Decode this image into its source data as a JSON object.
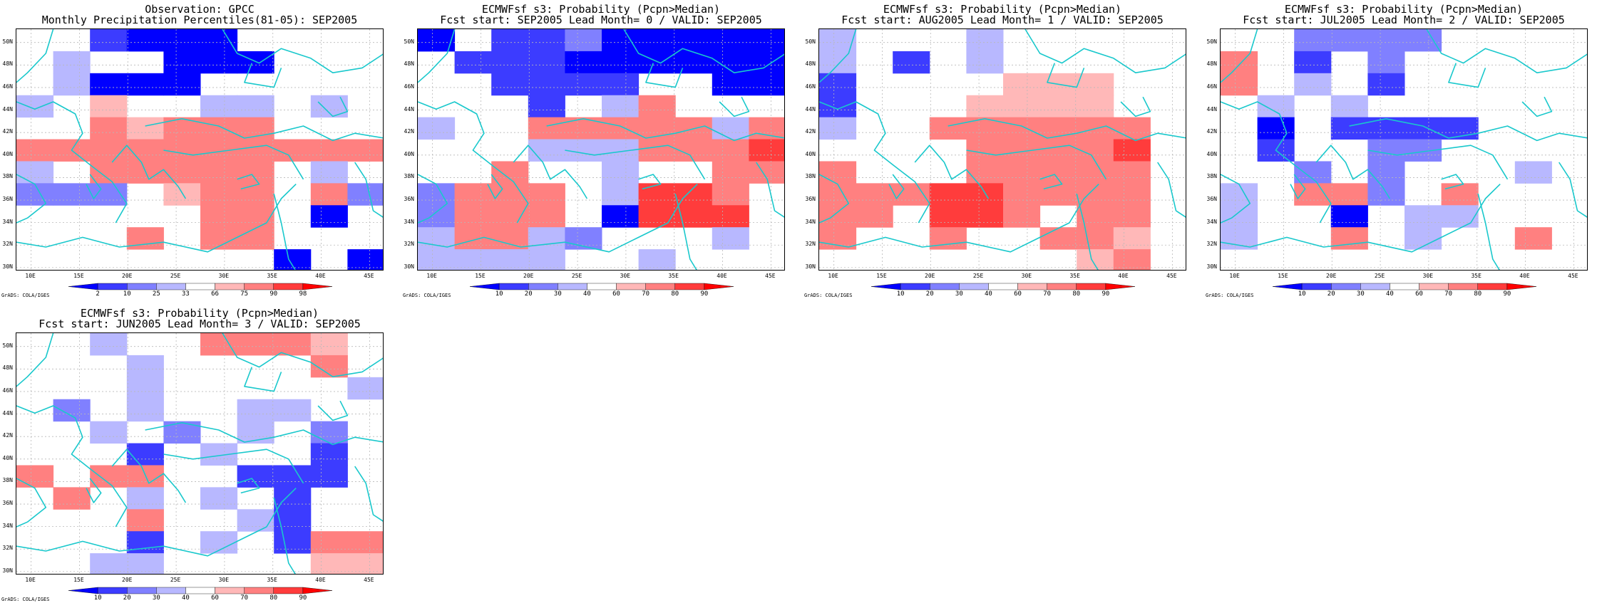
{
  "credit": "GrADS: COLA/IGES",
  "lat_labels": [
    "50N",
    "48N",
    "46N",
    "44N",
    "42N",
    "40N",
    "38N",
    "36N",
    "34N",
    "32N",
    "30N"
  ],
  "lon_labels": [
    "10E",
    "15E",
    "20E",
    "25E",
    "30E",
    "35E",
    "40E",
    "45E"
  ],
  "colors": {
    "coast": "#19c8cc",
    "grid": "#b8b8b8",
    "frame": "#000000"
  },
  "panels": [
    {
      "title1": "Observation: GPCC",
      "title2": "Monthly Precipitation Percentiles(81-05): SEP2005",
      "colorbar": {
        "labels": [
          "2",
          "10",
          "25",
          "33",
          "66",
          "75",
          "90",
          "98"
        ],
        "colors": [
          "#0000ff",
          "#3c3cff",
          "#8080ff",
          "#b8b8ff",
          "#ffffff",
          "#ffb8b8",
          "#ff8080",
          "#ff3c3c",
          "#ff0000"
        ]
      },
      "grid": [
        "..1000....",
        ".3..000...",
        ".3000.....",
        "3.B..33.3.",
        "..EBEEE...",
        "EEEEEEEEEE",
        "3.EEEEE.3.",
        "222.BEE.E2",
        ".....EE.0.",
        "...E.EE...",
        ".......0.0"
      ]
    },
    {
      "title1": "ECMWFsf s3: Probability (Pcpn>Median)",
      "title2": "Fcst start: SEP2005  Lead Month= 0 / VALID: SEP2005",
      "colorbar": {
        "labels": [
          "10",
          "20",
          "30",
          "40",
          "60",
          "70",
          "80",
          "90"
        ],
        "colors": [
          "#0000ff",
          "#3c3cff",
          "#8080ff",
          "#b8b8ff",
          "#ffffff",
          "#ffb8b8",
          "#ff8080",
          "#ff3c3c",
          "#ff0000"
        ]
      },
      "grid": [
        "0.11200000",
        ".111000000",
        "..1111..00",
        "...1.3E...",
        "3..EEEEE3E",
        "...333EEEF",
        "..E..3..EE",
        "2EEE.3FFE.",
        "2EEE.0FFF.",
        "3EE32...3.",
        "3333..3..."
      ]
    },
    {
      "title1": "ECMWFsf s3: Probability (Pcpn>Median)",
      "title2": "Fcst start: AUG2005  Lead Month= 1 / VALID: SEP2005",
      "colorbar": {
        "labels": [
          "10",
          "20",
          "30",
          "40",
          "60",
          "70",
          "80",
          "90"
        ],
        "colors": [
          "#0000ff",
          "#3c3cff",
          "#8080ff",
          "#b8b8ff",
          "#ffffff",
          "#ffb8b8",
          "#ff8080",
          "#ff3c3c",
          "#ff0000"
        ]
      },
      "grid": [
        "3...3.....",
        "3.1.3.....",
        "1....BBB..",
        "1...BBBB..",
        "3..EEEEEE.",
        "....EEEEF.",
        "E...EEEEE.",
        "EEEFFEEEE.",
        "EE.FFE.EE.",
        "E..E..EEB.",
        ".......BE."
      ]
    },
    {
      "title1": "ECMWFsf s3: Probability (Pcpn>Median)",
      "title2": "Fcst start: JUL2005  Lead Month= 2 / VALID: SEP2005",
      "colorbar": {
        "labels": [
          "10",
          "20",
          "30",
          "40",
          "60",
          "70",
          "80",
          "90"
        ],
        "colors": [
          "#0000ff",
          "#3c3cff",
          "#8080ff",
          "#b8b8ff",
          "#ffffff",
          "#ffb8b8",
          "#ff8080",
          "#ff3c3c",
          "#ff0000"
        ]
      },
      "grid": [
        "..2222....",
        "E.1.2.....",
        "E.3.1.....",
        ".3.3......",
        ".0.1111...",
        ".1..22....",
        "..2.2...3.",
        "3.EE2.E...",
        "3..0.33...",
        "3..E.3..E.",
        ".........."
      ]
    },
    {
      "title1": "ECMWFsf s3: Probability (Pcpn>Median)",
      "title2": "Fcst start: JUN2005  Lead Month= 3 / VALID: SEP2005",
      "colorbar": {
        "labels": [
          "10",
          "20",
          "30",
          "40",
          "60",
          "70",
          "80",
          "90"
        ],
        "colors": [
          "#0000ff",
          "#3c3cff",
          "#8080ff",
          "#b8b8ff",
          "#ffffff",
          "#ffb8b8",
          "#ff8080",
          "#ff3c3c",
          "#ff0000"
        ]
      },
      "grid": [
        "..3..EEEB.",
        "...3....E.",
        "...3.....3",
        ".2.3..33..",
        "..3.2.3.2.",
        "...1.3..1.",
        "E.EE..111.",
        ".E.3.3.1..",
        "...E..31..",
        "...1.3.1EE",
        "..33....BB"
      ]
    }
  ]
}
